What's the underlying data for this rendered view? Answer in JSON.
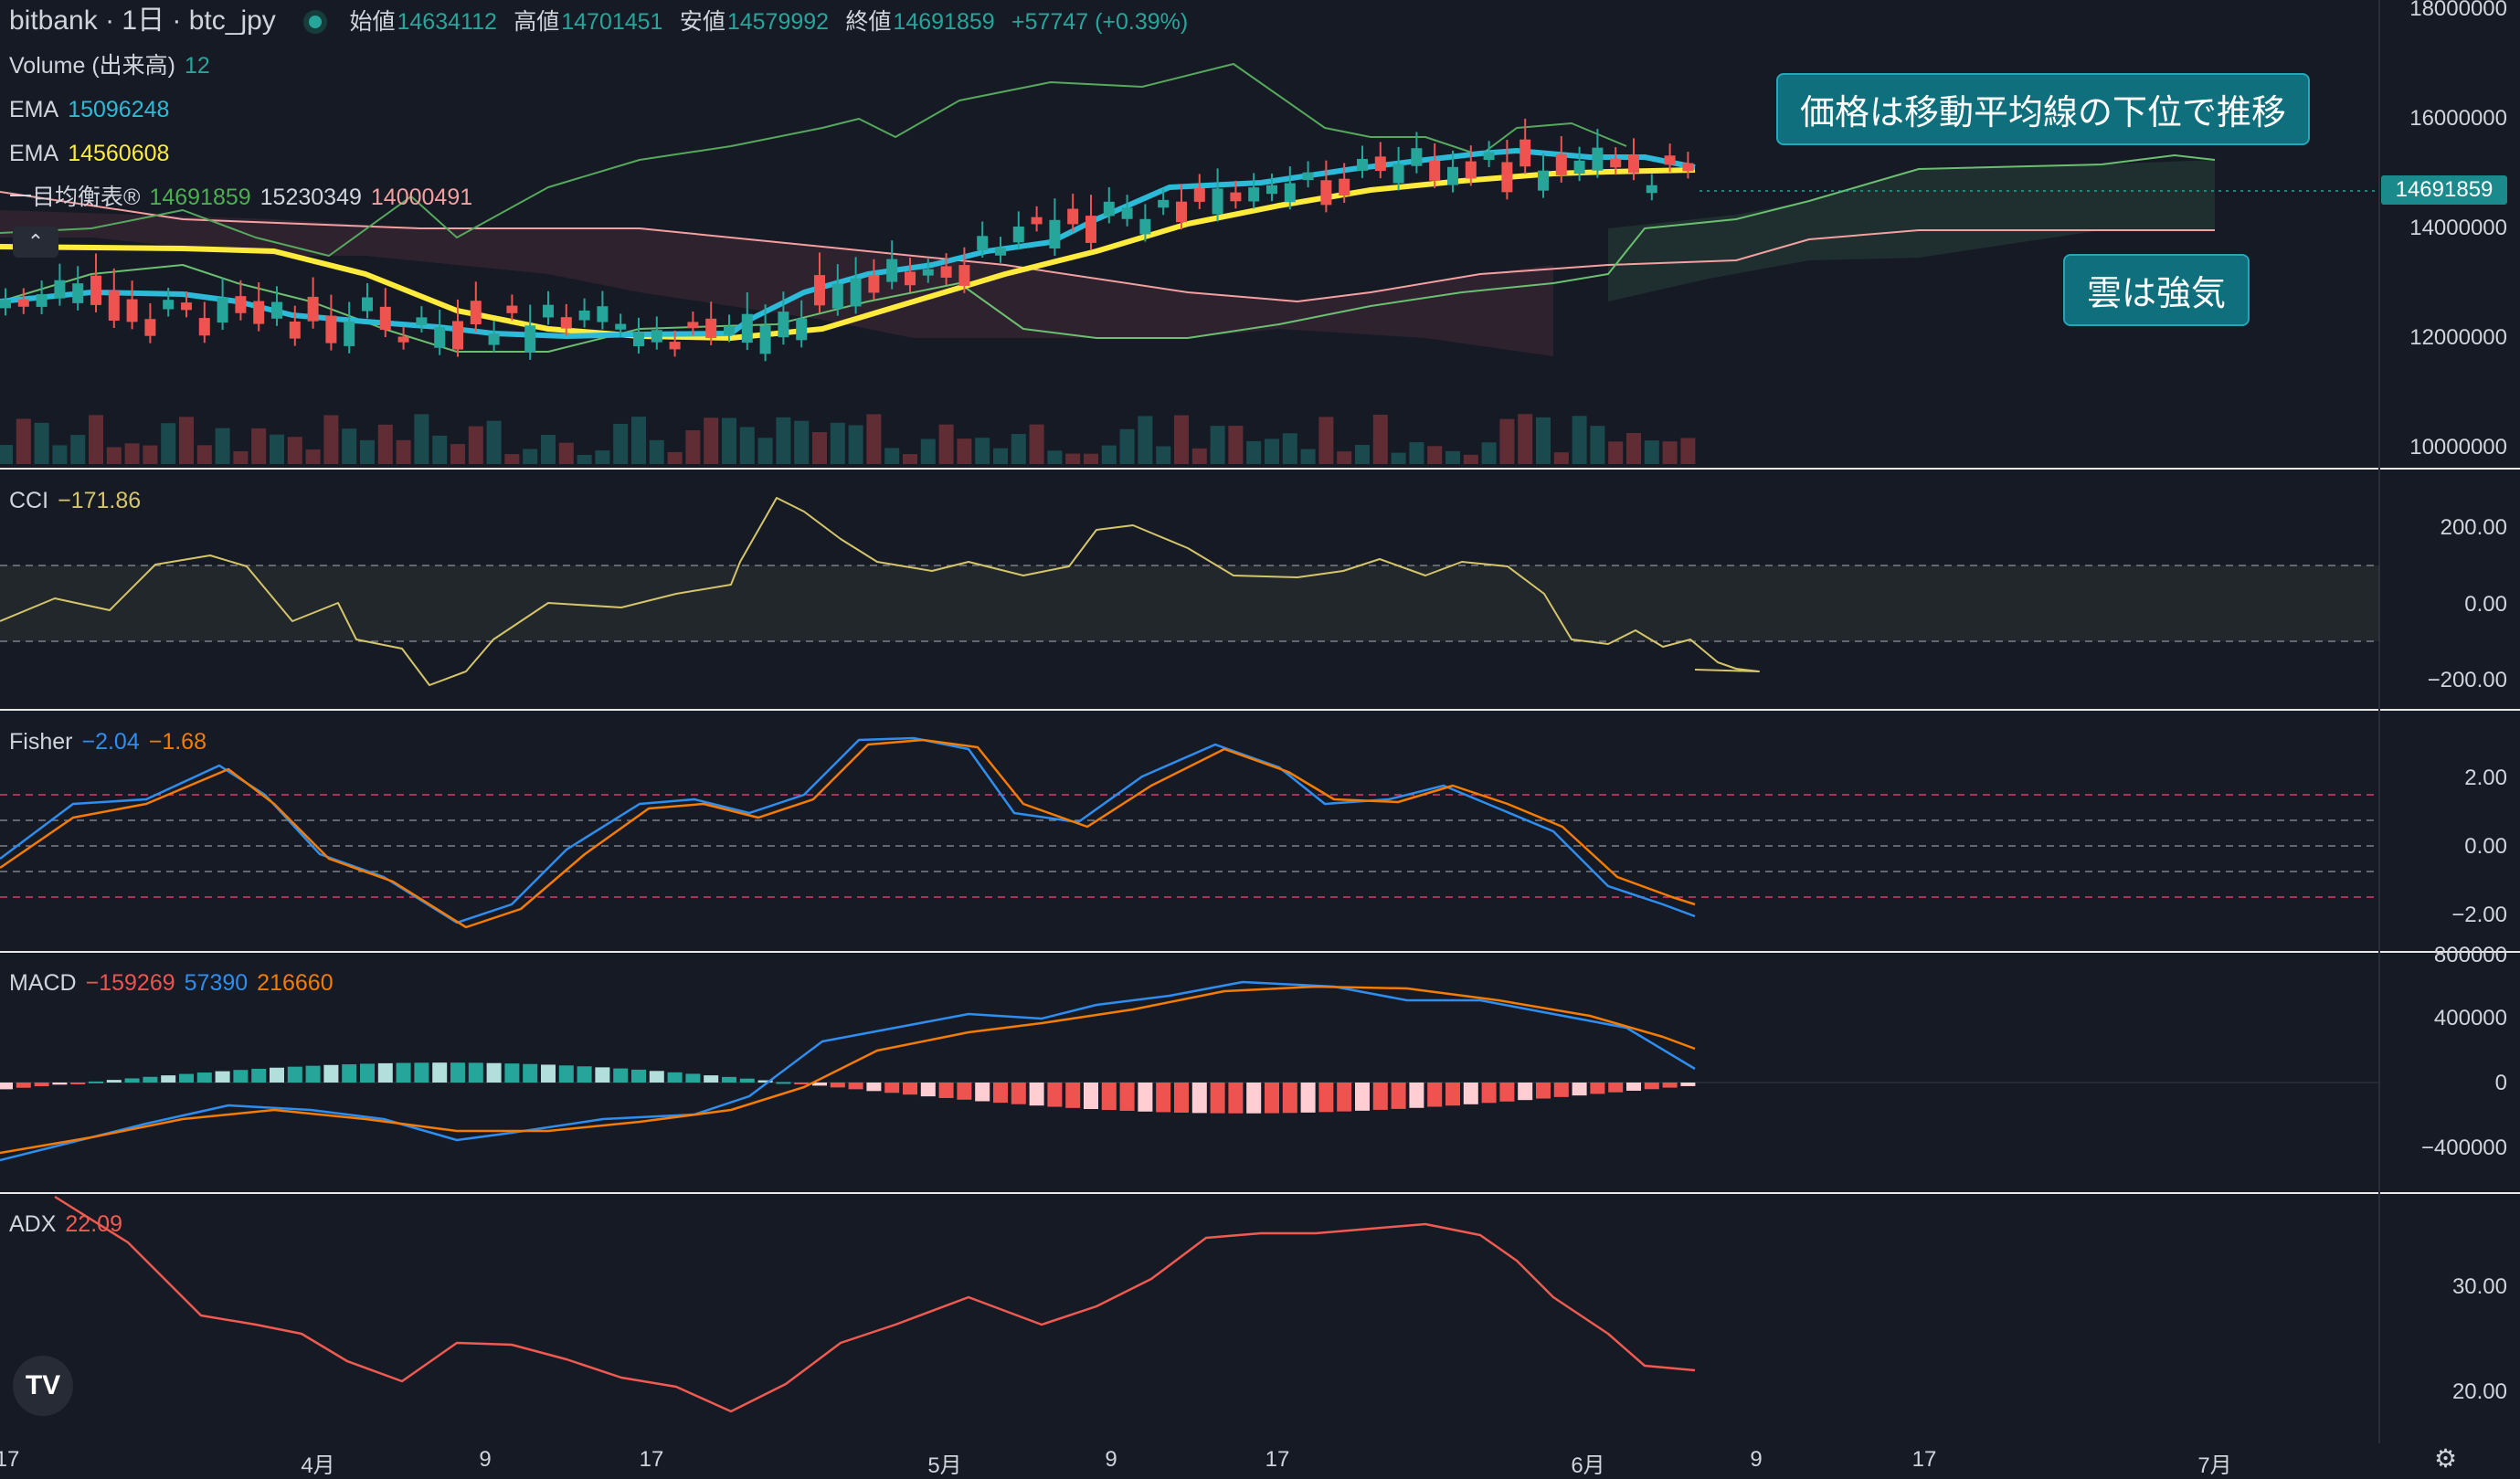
{
  "header": {
    "symbol": "bitbank · 1日 · btc_jpy",
    "open_label": "始値",
    "open": "14634112",
    "high_label": "高値",
    "high": "14701451",
    "low_label": "安値",
    "low": "14579992",
    "close_label": "終値",
    "close": "14691859",
    "change": "+57747 (+0.39%)"
  },
  "legend": {
    "volume_label": "Volume (出来高)",
    "volume_value": "12",
    "ema1_label": "EMA",
    "ema1_value": "15096248",
    "ema2_label": "EMA",
    "ema2_value": "14560608",
    "ichimoku_label": "一目均衡表®",
    "ichimoku_v1": "14691859",
    "ichimoku_v2": "15230349",
    "ichimoku_v3": "14000491"
  },
  "panes": {
    "cci_label": "CCI",
    "cci_value": "−171.86",
    "fisher_label": "Fisher",
    "fisher_v1": "−2.04",
    "fisher_v2": "−1.68",
    "macd_label": "MACD",
    "macd_v1": "−159269",
    "macd_v2": "57390",
    "macd_v3": "216660",
    "adx_label": "ADX",
    "adx_value": "22.09"
  },
  "price_axis": [
    "18000000",
    "16000000",
    "14000000",
    "12000000",
    "10000000"
  ],
  "current_price": "14691859",
  "cci_axis": [
    "200.00",
    "0.00",
    "−200.00"
  ],
  "fisher_axis": [
    "2.00",
    "0.00",
    "−2.00"
  ],
  "macd_axis": [
    "800000",
    "400000",
    "0",
    "−400000"
  ],
  "adx_axis": [
    "30.00",
    "20.00"
  ],
  "x_axis": [
    "17",
    "4月",
    "9",
    "17",
    "5月",
    "9",
    "17",
    "6月",
    "9",
    "17",
    "7月"
  ],
  "callouts": {
    "top": "価格は移動平均線の下位で推移",
    "bottom": "雲は強気"
  },
  "colors": {
    "background": "#161a25",
    "up": "#26a69a",
    "down": "#ef5350",
    "ema_fast": "#2bbbd8",
    "ema_slow": "#ffeb3b",
    "fisher_1": "#2e8ef0",
    "fisher_2": "#f57c00",
    "adx": "#f05a50",
    "cci": "#d4c56a"
  }
}
